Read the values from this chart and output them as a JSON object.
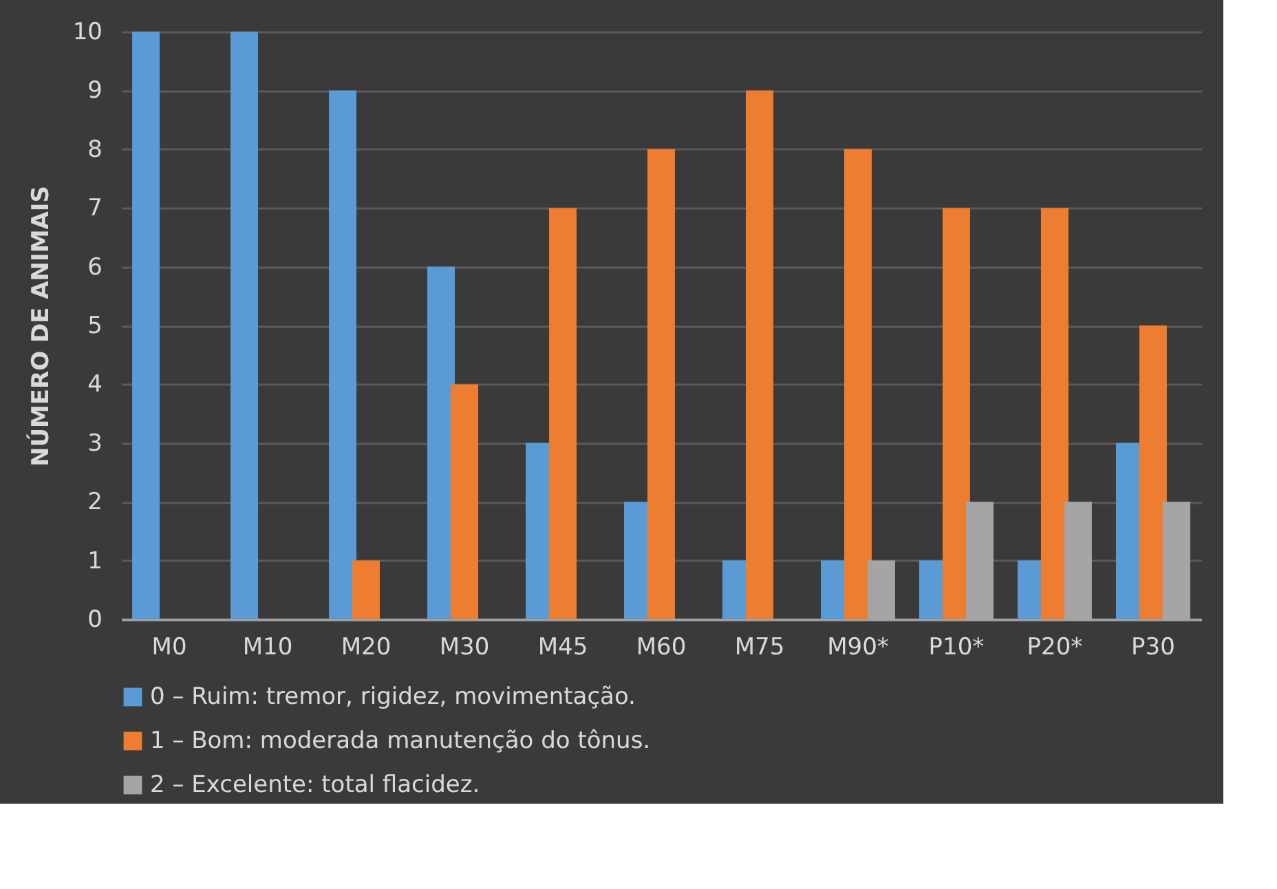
{
  "chart_data": {
    "type": "bar",
    "ylabel": "NÚMERO DE ANIMAIS",
    "categories": [
      "M0",
      "M10",
      "M20",
      "M30",
      "M45",
      "M60",
      "M75",
      "M90*",
      "P10*",
      "P20*",
      "P30"
    ],
    "series": [
      {
        "name": "0 – Ruim: tremor, rigidez, movimentação.",
        "color": "#5b9bd5",
        "values": [
          10,
          10,
          9,
          6,
          3,
          2,
          1,
          1,
          1,
          1,
          3
        ]
      },
      {
        "name": "1 – Bom: moderada manutenção do tônus.",
        "color": "#ed7d31",
        "values": [
          0,
          0,
          1,
          4,
          7,
          8,
          9,
          8,
          7,
          7,
          5
        ]
      },
      {
        "name": "2 – Excelente: total flacidez.",
        "color": "#a5a5a5",
        "values": [
          0,
          0,
          0,
          0,
          0,
          0,
          0,
          1,
          2,
          2,
          2
        ]
      }
    ],
    "ylim": [
      0,
      10
    ],
    "yticks": [
      0,
      1,
      2,
      3,
      4,
      5,
      6,
      7,
      8,
      9,
      10
    ],
    "grid": "y",
    "legend": "bottom"
  }
}
